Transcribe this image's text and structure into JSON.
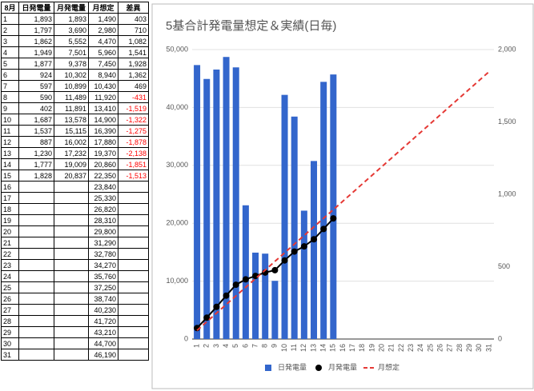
{
  "table": {
    "header": [
      "8月",
      "日発電量",
      "月発電量",
      "月想定",
      "差異"
    ],
    "negative_color": "#ff0000",
    "rows": [
      [
        "1",
        "1,893",
        "1,893",
        "1,490",
        "403"
      ],
      [
        "2",
        "1,797",
        "3,690",
        "2,980",
        "710"
      ],
      [
        "3",
        "1,862",
        "5,552",
        "4,470",
        "1,082"
      ],
      [
        "4",
        "1,949",
        "7,501",
        "5,960",
        "1,541"
      ],
      [
        "5",
        "1,877",
        "9,378",
        "7,450",
        "1,928"
      ],
      [
        "6",
        "924",
        "10,302",
        "8,940",
        "1,362"
      ],
      [
        "7",
        "597",
        "10,899",
        "10,430",
        "469"
      ],
      [
        "8",
        "590",
        "11,489",
        "11,920",
        "-431"
      ],
      [
        "9",
        "402",
        "11,891",
        "13,410",
        "-1,519"
      ],
      [
        "10",
        "1,687",
        "13,578",
        "14,900",
        "-1,322"
      ],
      [
        "11",
        "1,537",
        "15,115",
        "16,390",
        "-1,275"
      ],
      [
        "12",
        "887",
        "16,002",
        "17,880",
        "-1,878"
      ],
      [
        "13",
        "1,230",
        "17,232",
        "19,370",
        "-2,138"
      ],
      [
        "14",
        "1,777",
        "19,009",
        "20,860",
        "-1,851"
      ],
      [
        "15",
        "1,828",
        "20,837",
        "22,350",
        "-1,513"
      ],
      [
        "16",
        null,
        null,
        "23,840",
        null
      ],
      [
        "17",
        null,
        null,
        "25,330",
        null
      ],
      [
        "18",
        null,
        null,
        "26,820",
        null
      ],
      [
        "19",
        null,
        null,
        "28,310",
        null
      ],
      [
        "20",
        null,
        null,
        "29,800",
        null
      ],
      [
        "21",
        null,
        null,
        "31,290",
        null
      ],
      [
        "22",
        null,
        null,
        "32,780",
        null
      ],
      [
        "23",
        null,
        null,
        "34,270",
        null
      ],
      [
        "24",
        null,
        null,
        "35,760",
        null
      ],
      [
        "25",
        null,
        null,
        "37,250",
        null
      ],
      [
        "26",
        null,
        null,
        "38,740",
        null
      ],
      [
        "27",
        null,
        null,
        "40,230",
        null
      ],
      [
        "28",
        null,
        null,
        "41,720",
        null
      ],
      [
        "29",
        null,
        null,
        "43,210",
        null
      ],
      [
        "30",
        null,
        null,
        "44,700",
        null
      ],
      [
        "31",
        null,
        null,
        "46,190",
        null
      ]
    ]
  },
  "chart_data": {
    "type": "combo",
    "title": "5基合計発電量想定＆実績(日毎)",
    "categories": [
      "1",
      "2",
      "3",
      "4",
      "5",
      "6",
      "7",
      "8",
      "9",
      "10",
      "11",
      "12",
      "13",
      "14",
      "15",
      "16",
      "17",
      "18",
      "19",
      "20",
      "21",
      "22",
      "23",
      "24",
      "25",
      "26",
      "27",
      "28",
      "29",
      "30",
      "31"
    ],
    "series": [
      {
        "name": "日発電量",
        "type": "bar",
        "axis": "y2",
        "color": "#3366cc",
        "values": [
          1893,
          1797,
          1862,
          1949,
          1877,
          924,
          597,
          590,
          402,
          1687,
          1537,
          887,
          1230,
          1777,
          1828,
          null,
          null,
          null,
          null,
          null,
          null,
          null,
          null,
          null,
          null,
          null,
          null,
          null,
          null,
          null,
          null
        ]
      },
      {
        "name": "月発電量",
        "type": "line",
        "color": "#000000",
        "values": [
          1893,
          3690,
          5552,
          7501,
          9378,
          10302,
          10899,
          11489,
          11891,
          13578,
          15115,
          16002,
          17232,
          19009,
          20837,
          null,
          null,
          null,
          null,
          null,
          null,
          null,
          null,
          null,
          null,
          null,
          null,
          null,
          null,
          null,
          null
        ]
      },
      {
        "name": "月想定",
        "type": "dashed",
        "color": "#e53935",
        "values": [
          1490,
          2980,
          4470,
          5960,
          7450,
          8940,
          10430,
          11920,
          13410,
          14900,
          16390,
          17880,
          19370,
          20860,
          22350,
          23840,
          25330,
          26820,
          28310,
          29800,
          31290,
          32780,
          34270,
          35760,
          37250,
          38740,
          40230,
          41720,
          43210,
          44700,
          46190
        ]
      }
    ],
    "ylim": [
      0,
      50000
    ],
    "yticks": [
      0,
      {
        "value": 10000,
        "label": "10,000"
      },
      {
        "value": 20000,
        "label": "20,000"
      },
      {
        "value": 30000,
        "label": "30,000"
      },
      {
        "value": 40000,
        "label": "40,000"
      },
      {
        "value": 50000,
        "label": "50,000"
      }
    ],
    "y2lim": [
      0,
      2000
    ],
    "y2ticks": [
      0,
      500,
      {
        "value": 1000,
        "label": "1,000"
      },
      {
        "value": 1500,
        "label": "1,500"
      },
      {
        "value": 2000,
        "label": "2,000"
      }
    ],
    "grid": true
  }
}
